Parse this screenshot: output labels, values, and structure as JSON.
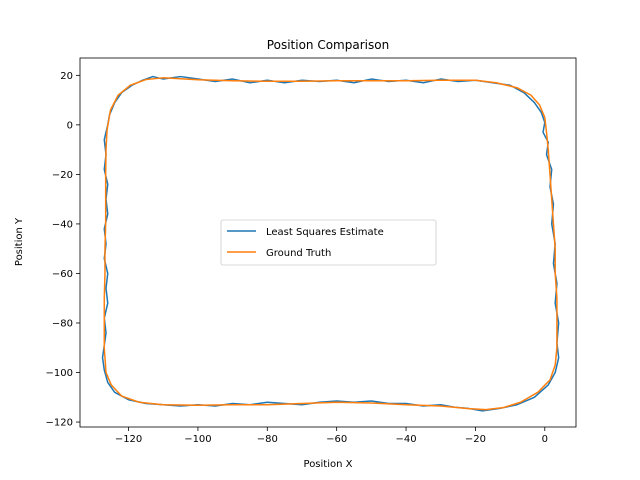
{
  "chart_data": {
    "type": "line",
    "title": "Position Comparison",
    "xlabel": "Position X",
    "ylabel": "Position Y",
    "xlim": [
      -134,
      9
    ],
    "ylim": [
      -122,
      27
    ],
    "xticks": [
      -120,
      -100,
      -80,
      -60,
      -40,
      -20,
      0
    ],
    "yticks": [
      -120,
      -100,
      -80,
      -60,
      -40,
      -20,
      0,
      20
    ],
    "xtick_labels": [
      "−120",
      "−100",
      "−80",
      "−60",
      "−40",
      "−20",
      "0"
    ],
    "ytick_labels": [
      "−120",
      "−100",
      "−80",
      "−60",
      "−40",
      "−20",
      "0",
      "20"
    ],
    "grid": false,
    "legend_placement": "center",
    "series": [
      {
        "name": "Least Squares Estimate",
        "color": "#1f77b4",
        "points": [
          [
            -113,
            19.5
          ],
          [
            -110,
            18.5
          ],
          [
            -105,
            19.5
          ],
          [
            -100,
            18.5
          ],
          [
            -95,
            17.5
          ],
          [
            -90,
            18.5
          ],
          [
            -85,
            17
          ],
          [
            -80,
            18
          ],
          [
            -75,
            17
          ],
          [
            -70,
            18
          ],
          [
            -65,
            17.5
          ],
          [
            -60,
            18
          ],
          [
            -55,
            17
          ],
          [
            -50,
            18.5
          ],
          [
            -45,
            17.5
          ],
          [
            -40,
            18
          ],
          [
            -35,
            17
          ],
          [
            -30,
            18.5
          ],
          [
            -25,
            17.5
          ],
          [
            -20,
            18
          ],
          [
            -15,
            17
          ],
          [
            -10,
            16
          ],
          [
            -6,
            13
          ],
          [
            -3,
            9
          ],
          [
            -1,
            5
          ],
          [
            0,
            1
          ],
          [
            -0.5,
            -3
          ],
          [
            1,
            -7
          ],
          [
            0.5,
            -12
          ],
          [
            2,
            -18
          ],
          [
            1.5,
            -25
          ],
          [
            2.5,
            -32
          ],
          [
            2,
            -40
          ],
          [
            3,
            -48
          ],
          [
            2.5,
            -56
          ],
          [
            3.5,
            -64
          ],
          [
            3,
            -72
          ],
          [
            4,
            -80
          ],
          [
            3.5,
            -88
          ],
          [
            4,
            -94
          ],
          [
            3,
            -100
          ],
          [
            1,
            -105
          ],
          [
            -3,
            -110
          ],
          [
            -8,
            -113
          ],
          [
            -13,
            -114.5
          ],
          [
            -18,
            -115.5
          ],
          [
            -22,
            -114.5
          ],
          [
            -26,
            -114
          ],
          [
            -30,
            -113
          ],
          [
            -35,
            -113.5
          ],
          [
            -40,
            -112.5
          ],
          [
            -45,
            -112.5
          ],
          [
            -50,
            -111.5
          ],
          [
            -55,
            -112
          ],
          [
            -60,
            -111.5
          ],
          [
            -65,
            -112
          ],
          [
            -70,
            -113
          ],
          [
            -75,
            -112.5
          ],
          [
            -80,
            -112
          ],
          [
            -85,
            -113
          ],
          [
            -90,
            -112.5
          ],
          [
            -95,
            -113.5
          ],
          [
            -100,
            -113
          ],
          [
            -105,
            -113.5
          ],
          [
            -110,
            -113
          ],
          [
            -115,
            -112.5
          ],
          [
            -120,
            -111
          ],
          [
            -124,
            -108
          ],
          [
            -126,
            -104
          ],
          [
            -127,
            -99
          ],
          [
            -127.5,
            -94
          ],
          [
            -127,
            -89
          ],
          [
            -126.5,
            -84
          ],
          [
            -127,
            -78
          ],
          [
            -126,
            -72
          ],
          [
            -126.5,
            -66
          ],
          [
            -126,
            -60
          ],
          [
            -127,
            -54
          ],
          [
            -126.5,
            -48
          ],
          [
            -127,
            -42
          ],
          [
            -126,
            -36
          ],
          [
            -126.5,
            -30
          ],
          [
            -126,
            -24
          ],
          [
            -127,
            -18
          ],
          [
            -126.5,
            -12
          ],
          [
            -127,
            -6
          ],
          [
            -126,
            0
          ],
          [
            -125.5,
            4
          ],
          [
            -124,
            9
          ],
          [
            -122,
            13
          ],
          [
            -119,
            16
          ],
          [
            -116,
            18
          ],
          [
            -113,
            19.5
          ]
        ]
      },
      {
        "name": "Ground Truth",
        "color": "#ff7f0e",
        "points": [
          [
            -110,
            19
          ],
          [
            -100,
            18.2
          ],
          [
            -90,
            17.8
          ],
          [
            -80,
            17.6
          ],
          [
            -70,
            17.6
          ],
          [
            -60,
            17.8
          ],
          [
            -50,
            17.8
          ],
          [
            -40,
            17.8
          ],
          [
            -30,
            18
          ],
          [
            -20,
            18
          ],
          [
            -14,
            17
          ],
          [
            -8,
            15
          ],
          [
            -4,
            12
          ],
          [
            -1.5,
            8
          ],
          [
            0,
            3
          ],
          [
            0.5,
            -3
          ],
          [
            1,
            -10
          ],
          [
            1.5,
            -20
          ],
          [
            2,
            -30
          ],
          [
            2.5,
            -40
          ],
          [
            3,
            -50
          ],
          [
            3,
            -60
          ],
          [
            3.5,
            -70
          ],
          [
            3.5,
            -80
          ],
          [
            3.5,
            -90
          ],
          [
            3,
            -97
          ],
          [
            1.5,
            -103
          ],
          [
            -2,
            -108
          ],
          [
            -7,
            -112
          ],
          [
            -12,
            -114.2
          ],
          [
            -17,
            -115
          ],
          [
            -22,
            -114.6
          ],
          [
            -30,
            -113.5
          ],
          [
            -40,
            -113
          ],
          [
            -50,
            -112.3
          ],
          [
            -60,
            -112
          ],
          [
            -70,
            -112.5
          ],
          [
            -80,
            -113
          ],
          [
            -90,
            -113
          ],
          [
            -100,
            -113.2
          ],
          [
            -110,
            -113
          ],
          [
            -117,
            -112
          ],
          [
            -122,
            -109.5
          ],
          [
            -125,
            -105
          ],
          [
            -126.5,
            -100
          ],
          [
            -127,
            -90
          ],
          [
            -127,
            -80
          ],
          [
            -127,
            -70
          ],
          [
            -126.8,
            -60
          ],
          [
            -126.8,
            -50
          ],
          [
            -126.6,
            -40
          ],
          [
            -126.6,
            -30
          ],
          [
            -126.6,
            -20
          ],
          [
            -126.5,
            -10
          ],
          [
            -126.2,
            -2
          ],
          [
            -125.2,
            6
          ],
          [
            -123,
            12
          ],
          [
            -119.5,
            16
          ],
          [
            -115,
            18.3
          ],
          [
            -110,
            19
          ]
        ]
      }
    ]
  }
}
